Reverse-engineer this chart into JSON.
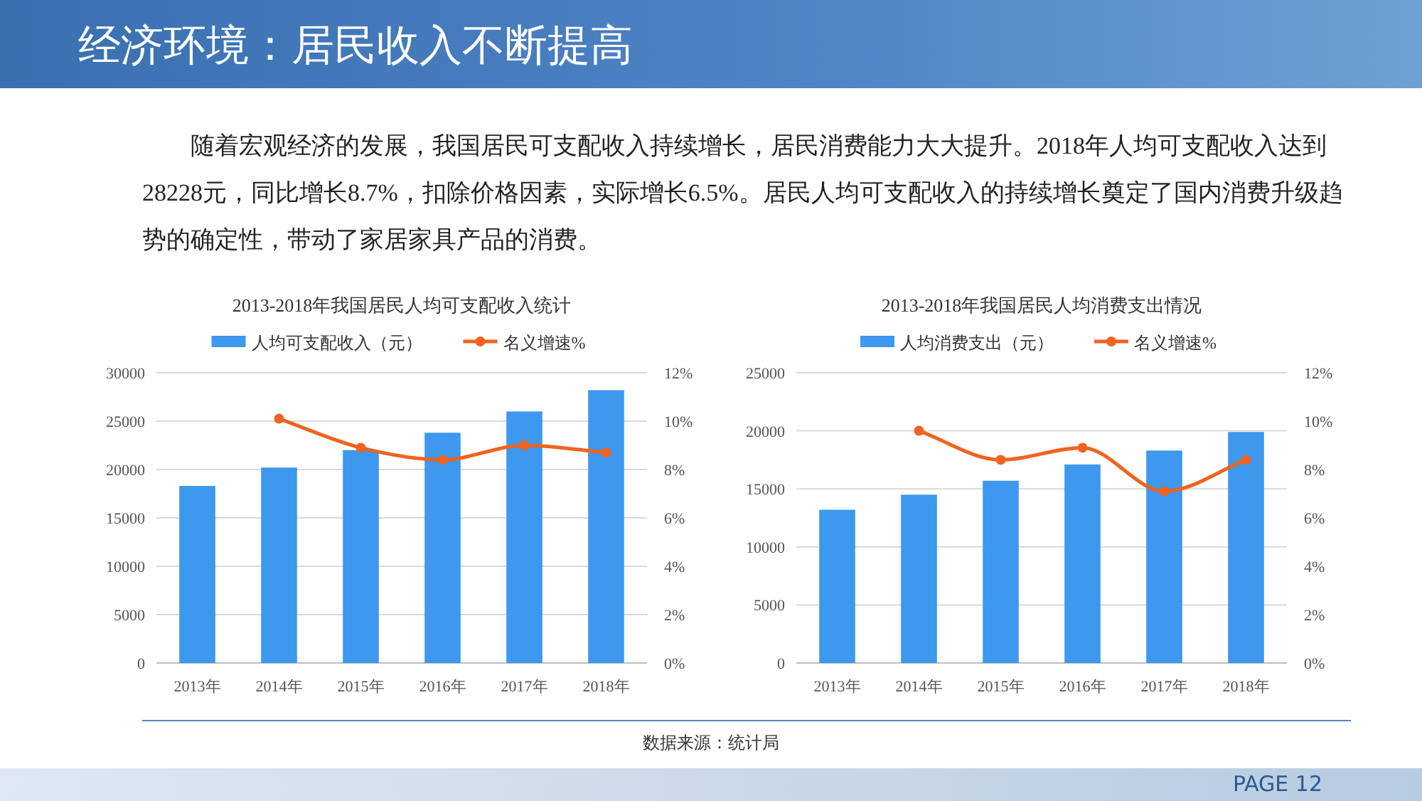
{
  "chart_data": [
    {
      "type": "other",
      "title": "经济环境：居民收入不断提高",
      "annotations": [
        "随着宏观经济的发展，我国居民可支配收入持续增长，居民消费能力大大提升。2018年人均可支配收入达到28228元，同比增长8.7%，扣除价格因素，实际增长6.5%。居民人均可支配收入的持续增长奠定了国内消费升级趋势的确定性，带动了家居家具产品的消费。",
        "数据来源：统计局",
        "PAGE 12"
      ]
    },
    {
      "type": "bar",
      "title": "2013-2018年我国居民人均可支配收入统计",
      "categories": [
        "2013年",
        "2014年",
        "2015年",
        "2016年",
        "2017年",
        "2018年"
      ],
      "series": [
        {
          "name": "人均可支配收入（元）",
          "color": "#3d98ee",
          "values": [
            18300,
            20200,
            22000,
            23800,
            26000,
            28200
          ]
        },
        {
          "name": "名义增速%",
          "type": "line",
          "axis": "y2",
          "color": "#f0631e",
          "values": [
            null,
            10.1,
            8.9,
            8.4,
            9.0,
            8.7
          ]
        }
      ],
      "ylim": [
        0,
        30000
      ],
      "yticks": [
        0,
        5000,
        10000,
        15000,
        20000,
        25000,
        30000
      ],
      "y2lim": [
        0,
        12
      ],
      "y2ticks": [
        {
          "value": 0,
          "label": "0%"
        },
        {
          "value": 2,
          "label": "2%"
        },
        {
          "value": 4,
          "label": "4%"
        },
        {
          "value": 6,
          "label": "6%"
        },
        {
          "value": 8,
          "label": "8%"
        },
        {
          "value": 10,
          "label": "10%"
        },
        {
          "value": 12,
          "label": "12%"
        }
      ],
      "grid": "y",
      "legend": "top",
      "marker": "circle"
    },
    {
      "type": "bar",
      "title": "2013-2018年我国居民人均消费支出情况",
      "categories": [
        "2013年",
        "2014年",
        "2015年",
        "2016年",
        "2017年",
        "2018年"
      ],
      "series": [
        {
          "name": "人均消费支出（元）",
          "color": "#3d98ee",
          "values": [
            13200,
            14500,
            15700,
            17100,
            18300,
            19900
          ]
        },
        {
          "name": "名义增速%",
          "type": "line",
          "axis": "y2",
          "color": "#f0631e",
          "values": [
            null,
            9.6,
            8.4,
            8.9,
            7.1,
            8.4
          ]
        }
      ],
      "ylim": [
        0,
        25000
      ],
      "yticks": [
        0,
        5000,
        10000,
        15000,
        20000,
        25000
      ],
      "y2lim": [
        0,
        12
      ],
      "y2ticks": [
        {
          "value": 0,
          "label": "0%"
        },
        {
          "value": 2,
          "label": "2%"
        },
        {
          "value": 4,
          "label": "4%"
        },
        {
          "value": 6,
          "label": "6%"
        },
        {
          "value": 8,
          "label": "8%"
        },
        {
          "value": 10,
          "label": "10%"
        },
        {
          "value": 12,
          "label": "12%"
        }
      ],
      "grid": "y",
      "legend": "top",
      "marker": "circle"
    }
  ]
}
